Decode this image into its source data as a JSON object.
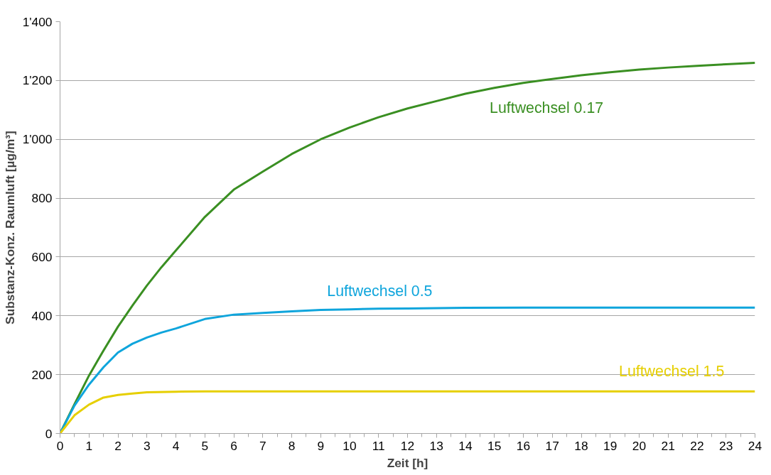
{
  "chart_data": {
    "type": "line",
    "xlabel": "Zeit [h]",
    "ylabel": "Substanz-Konz. Raumluft [µg/m³]",
    "xlim": [
      0,
      24
    ],
    "xticks": [
      0,
      1,
      2,
      3,
      4,
      5,
      6,
      7,
      8,
      9,
      10,
      11,
      12,
      13,
      14,
      15,
      16,
      17,
      18,
      19,
      20,
      21,
      22,
      23,
      24
    ],
    "ylim": [
      0,
      1400
    ],
    "yticks": [
      0,
      {
        "value": 200,
        "label": "200"
      },
      {
        "value": 400,
        "label": "400"
      },
      {
        "value": 600,
        "label": "600"
      },
      {
        "value": 800,
        "label": "800"
      },
      {
        "value": 1000,
        "label": "1'000"
      },
      {
        "value": 1200,
        "label": "1'200"
      },
      {
        "value": 1400,
        "label": "1'400"
      }
    ],
    "grid": "y",
    "marker": "none",
    "line_style": "solid",
    "series": [
      {
        "name": "Luftwechsel 0.17",
        "color": "#3a8f22",
        "x": [
          0,
          0.5,
          1,
          1.5,
          2,
          2.5,
          3,
          3.5,
          4,
          5,
          6,
          7,
          8,
          9,
          10,
          11,
          12,
          13,
          14,
          15,
          16,
          17,
          18,
          19,
          20,
          21,
          22,
          23,
          24
        ],
        "values": [
          0,
          100,
          197,
          282,
          363,
          435,
          503,
          565,
          622,
          736,
          829,
          890,
          950,
          1000,
          1040,
          1075,
          1105,
          1130,
          1155,
          1175,
          1192,
          1205,
          1218,
          1228,
          1237,
          1244,
          1250,
          1255,
          1260
        ]
      },
      {
        "name": "Luftwechsel 0.5",
        "color": "#0fa5dc",
        "x": [
          0,
          0.5,
          1,
          1.5,
          2,
          2.5,
          3,
          3.5,
          4,
          5,
          6,
          7,
          8,
          9,
          10,
          11,
          12,
          13,
          14,
          16,
          18,
          20,
          22,
          24
        ],
        "values": [
          0,
          95,
          166,
          225,
          275,
          305,
          326,
          343,
          357,
          389,
          404,
          410,
          415,
          420,
          422,
          424,
          425,
          426,
          427,
          428,
          428,
          428,
          428,
          428
        ]
      },
      {
        "name": "Luftwechsel 1.5",
        "color": "#e6cf00",
        "x": [
          0,
          0.5,
          1,
          1.5,
          2,
          2.5,
          3,
          4,
          5,
          6,
          8,
          10,
          12,
          14,
          16,
          18,
          20,
          22,
          24
        ],
        "values": [
          0,
          62,
          98,
          122,
          131,
          136,
          140,
          142,
          143,
          143,
          143,
          143,
          143,
          143,
          143,
          143,
          143,
          143,
          143
        ]
      }
    ]
  }
}
